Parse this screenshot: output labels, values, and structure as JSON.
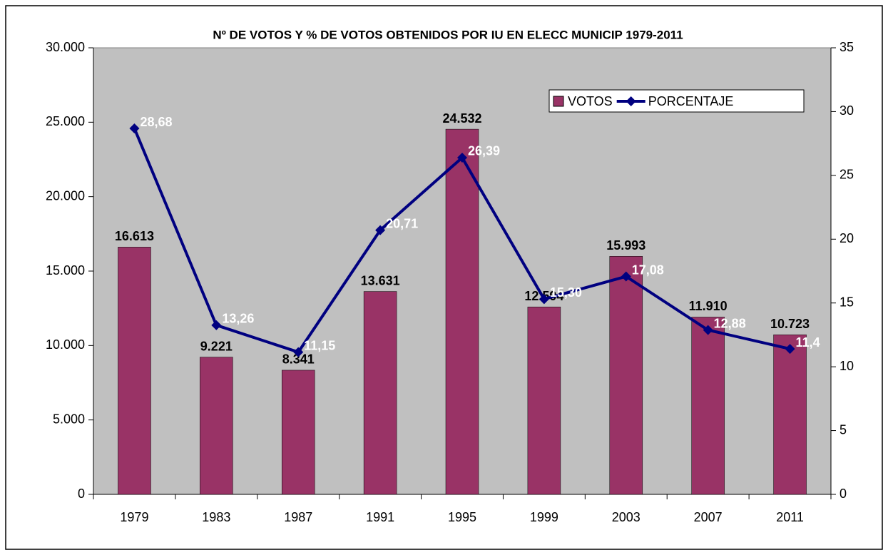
{
  "chart_data": {
    "type": "bar",
    "title": "Nº DE VOTOS Y % DE VOTOS OBTENIDOS POR IU EN ELECC MUNICIP 1979-2011",
    "categories": [
      "1979",
      "1983",
      "1987",
      "1991",
      "1995",
      "1999",
      "2003",
      "2007",
      "2011"
    ],
    "series": [
      {
        "name": "VOTOS",
        "type": "bar",
        "color": "#993366",
        "values": [
          16613,
          9221,
          8341,
          13631,
          24532,
          12594,
          15993,
          11910,
          10723
        ],
        "value_labels": [
          "16.613",
          "9.221",
          "8.341",
          "13.631",
          "24.532",
          "12.594",
          "15.993",
          "11.910",
          "10.723"
        ]
      },
      {
        "name": "PORCENTAJE",
        "type": "line",
        "axis": "y2",
        "color": "#000080",
        "values": [
          28.68,
          13.26,
          11.15,
          20.71,
          26.39,
          15.3,
          17.08,
          12.88,
          11.4
        ],
        "value_labels": [
          "28,68",
          "13,26",
          "11,15",
          "20,71",
          "26,39",
          "15,30",
          "17,08",
          "12,88",
          "11,4"
        ]
      }
    ],
    "ylim": [
      0,
      30000
    ],
    "yticks": [
      0,
      {
        "value": 5000,
        "label": "5.000"
      },
      {
        "value": 10000,
        "label": "10.000"
      },
      {
        "value": 15000,
        "label": "15.000"
      },
      {
        "value": 20000,
        "label": "20.000"
      },
      {
        "value": 25000,
        "label": "25.000"
      },
      {
        "value": 30000,
        "label": "30.000"
      }
    ],
    "y2lim": [
      0,
      35
    ],
    "y2ticks": [
      0,
      5,
      10,
      15,
      20,
      25,
      30,
      35
    ],
    "legend": "top-right",
    "grid": false,
    "plot_background": "#c0c0c0"
  }
}
